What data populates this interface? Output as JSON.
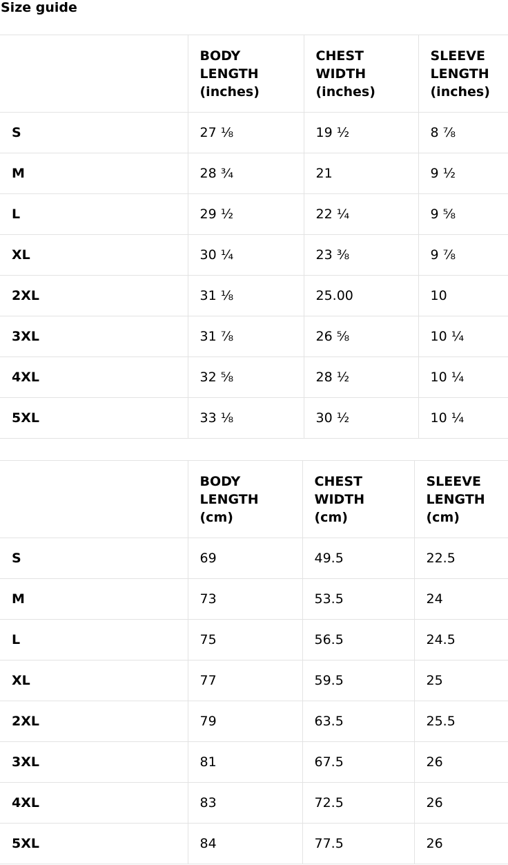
{
  "header": {
    "title": "Size guide"
  },
  "tables": [
    {
      "columns": [
        "",
        "BODY LENGTH (inches)",
        "CHEST WIDTH (inches)",
        "SLEEVE LENGTH (inches)"
      ],
      "rows": [
        [
          "S",
          "27 ⅛",
          "19 ½",
          "8 ⅞"
        ],
        [
          "M",
          "28 ¾",
          "21",
          "9 ½"
        ],
        [
          "L",
          "29 ½",
          "22 ¼",
          "9 ⅝"
        ],
        [
          "XL",
          "30 ¼",
          "23 ⅜",
          "9 ⅞"
        ],
        [
          "2XL",
          "31 ⅛",
          "25.00",
          "10"
        ],
        [
          "3XL",
          "31 ⅞",
          "26 ⅝",
          "10 ¼"
        ],
        [
          "4XL",
          "32 ⅝",
          "28 ½",
          "10 ¼"
        ],
        [
          "5XL",
          "33 ⅛",
          "30 ½",
          "10 ¼"
        ]
      ]
    },
    {
      "columns": [
        "",
        "BODY LENGTH (cm)",
        "CHEST WIDTH (cm)",
        "SLEEVE LENGTH (cm)"
      ],
      "rows": [
        [
          "S",
          "69",
          "49.5",
          "22.5"
        ],
        [
          "M",
          "73",
          "53.5",
          "24"
        ],
        [
          "L",
          "75",
          "56.5",
          "24.5"
        ],
        [
          "XL",
          "77",
          "59.5",
          "25"
        ],
        [
          "2XL",
          "79",
          "63.5",
          "25.5"
        ],
        [
          "3XL",
          "81",
          "67.5",
          "26"
        ],
        [
          "4XL",
          "83",
          "72.5",
          "26"
        ],
        [
          "5XL",
          "84",
          "77.5",
          "26"
        ]
      ]
    }
  ]
}
